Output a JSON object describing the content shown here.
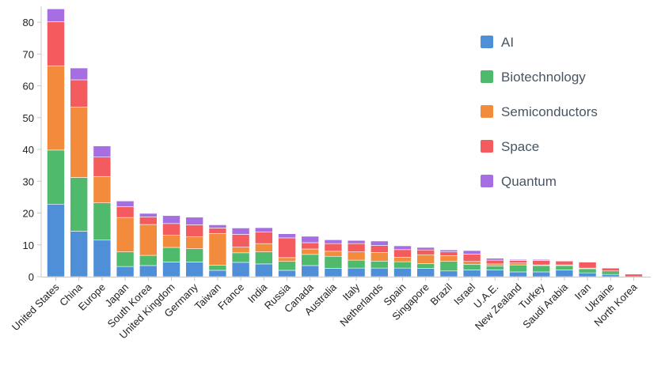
{
  "chart_data": {
    "type": "bar",
    "stacked": true,
    "categories": [
      "United States",
      "China",
      "Europe",
      "Japan",
      "South Korea",
      "United Kingdom",
      "Germany",
      "Taiwan",
      "France",
      "India",
      "Russia",
      "Canada",
      "Australia",
      "Italy",
      "Netherlands",
      "Spain",
      "Singapore",
      "Brazil",
      "Israel",
      "U.A.E.",
      "New Zealand",
      "Turkey",
      "Saudi Arabia",
      "Iran",
      "Ukraine",
      "North Korea"
    ],
    "series": [
      {
        "name": "AI",
        "color": "#4e8fd8",
        "values": [
          22.8,
          14.3,
          11.5,
          3.2,
          3.5,
          4.6,
          4.6,
          2.0,
          4.5,
          4.0,
          2.0,
          3.5,
          2.6,
          2.7,
          2.7,
          2.7,
          2.6,
          1.8,
          2.1,
          2.1,
          1.5,
          1.5,
          2.1,
          1.2,
          0.7,
          0.0
        ]
      },
      {
        "name": "Biotechnology",
        "color": "#4fb96c",
        "values": [
          17.0,
          16.9,
          11.7,
          4.6,
          3.2,
          4.6,
          4.2,
          1.6,
          3.0,
          3.8,
          2.8,
          3.5,
          3.8,
          2.5,
          2.2,
          2.0,
          1.5,
          3.0,
          1.8,
          1.3,
          2.2,
          2.0,
          1.4,
          1.3,
          1.1,
          0.0
        ]
      },
      {
        "name": "Semiconductors",
        "color": "#f28c3c",
        "values": [
          26.5,
          22.1,
          8.3,
          10.8,
          9.7,
          3.8,
          3.7,
          10.0,
          1.8,
          2.6,
          1.2,
          1.7,
          1.6,
          2.6,
          2.7,
          1.4,
          2.8,
          1.8,
          0.9,
          0.6,
          0.6,
          0.2,
          0.2,
          0.2,
          0.0,
          0.0
        ]
      },
      {
        "name": "Space",
        "color": "#f45b5f",
        "values": [
          13.9,
          8.6,
          6.1,
          3.4,
          2.4,
          3.7,
          3.8,
          1.7,
          4.0,
          3.6,
          6.2,
          2.0,
          2.4,
          2.6,
          2.2,
          2.4,
          1.5,
          1.2,
          2.3,
          1.2,
          0.8,
          1.4,
          1.2,
          1.9,
          0.9,
          0.8
        ]
      },
      {
        "name": "Quantum",
        "color": "#a66ee3",
        "values": [
          4.0,
          3.7,
          3.5,
          1.8,
          1.1,
          2.5,
          2.4,
          1.0,
          2.0,
          1.4,
          1.3,
          2.0,
          1.2,
          1.0,
          1.4,
          1.2,
          0.8,
          0.6,
          1.1,
          0.6,
          0.3,
          0.3,
          0.0,
          0.1,
          0.0,
          0.0
        ]
      }
    ],
    "ylim": [
      0,
      85
    ],
    "yticks": [
      0,
      10,
      20,
      30,
      40,
      50,
      60,
      70,
      80
    ],
    "xlabel": "",
    "ylabel": "",
    "title": "",
    "grid": false,
    "legend": "top-right"
  }
}
